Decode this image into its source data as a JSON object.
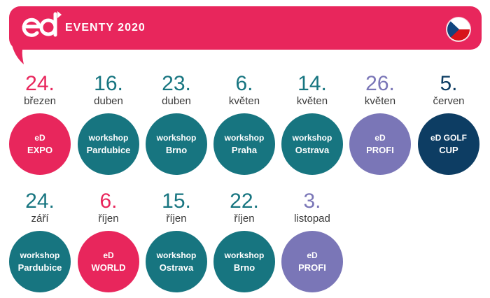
{
  "header": {
    "title": "EVENTY 2020",
    "logo_text": "eD",
    "logo_icon": "ed-logo-icon",
    "flag_icon": "czech-flag-icon",
    "colors": {
      "banner": "#e8265c"
    }
  },
  "colors": {
    "pink": "#e8265c",
    "teal": "#177580",
    "purple": "#7a76b7",
    "navy": "#0d3d63"
  },
  "events": [
    {
      "day": "24.",
      "month": "březen",
      "line1": "eD",
      "line2": "EXPO",
      "color": "#e8265c",
      "day_color": "#e8265c"
    },
    {
      "day": "16.",
      "month": "duben",
      "line1": "workshop",
      "line2": "Pardubice",
      "color": "#177580",
      "day_color": "#177580"
    },
    {
      "day": "23.",
      "month": "duben",
      "line1": "workshop",
      "line2": "Brno",
      "color": "#177580",
      "day_color": "#177580"
    },
    {
      "day": "6.",
      "month": "květen",
      "line1": "workshop",
      "line2": "Praha",
      "color": "#177580",
      "day_color": "#177580"
    },
    {
      "day": "14.",
      "month": "květen",
      "line1": "workshop",
      "line2": "Ostrava",
      "color": "#177580",
      "day_color": "#177580"
    },
    {
      "day": "26.",
      "month": "květen",
      "line1": "eD",
      "line2": "PROFI",
      "color": "#7a76b7",
      "day_color": "#7a76b7"
    },
    {
      "day": "5.",
      "month": "červen",
      "line1": "eD GOLF",
      "line2": "CUP",
      "color": "#0d3d63",
      "day_color": "#0d3d63"
    },
    {
      "day": "24.",
      "month": "září",
      "line1": "workshop",
      "line2": "Pardubice",
      "color": "#177580",
      "day_color": "#177580"
    },
    {
      "day": "6.",
      "month": "říjen",
      "line1": "eD",
      "line2": "WORLD",
      "color": "#e8265c",
      "day_color": "#e8265c"
    },
    {
      "day": "15.",
      "month": "říjen",
      "line1": "workshop",
      "line2": "Ostrava",
      "color": "#177580",
      "day_color": "#177580"
    },
    {
      "day": "22.",
      "month": "říjen",
      "line1": "workshop",
      "line2": "Brno",
      "color": "#177580",
      "day_color": "#177580"
    },
    {
      "day": "3.",
      "month": "listopad",
      "line1": "eD",
      "line2": "PROFI",
      "color": "#7a76b7",
      "day_color": "#7a76b7"
    }
  ]
}
